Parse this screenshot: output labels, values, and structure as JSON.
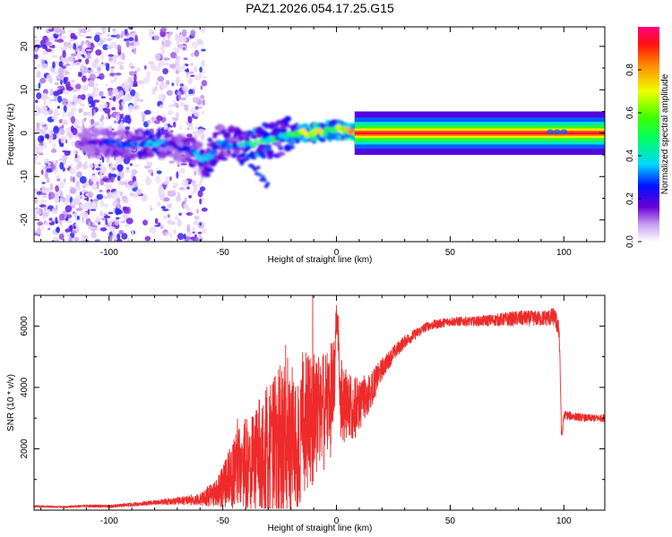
{
  "title": "PAZ1.2026.054.17.25.G15",
  "colors": {
    "snr_line": "#ee2a2a",
    "axis": "#000000"
  },
  "chart_data": [
    {
      "type": "heatmap",
      "name": "spectrogram",
      "xlabel": "Height of straight line (km)",
      "ylabel": "Frequency (Hz)",
      "xlim": [
        -133,
        118
      ],
      "ylim": [
        -25,
        24.5
      ],
      "xticks": [
        -100,
        -50,
        0,
        50,
        100
      ],
      "yticks": [
        -20,
        -10,
        0,
        10,
        20
      ],
      "colorbar": {
        "label": "Normalized spectral amplitude",
        "range": [
          0,
          1
        ],
        "ticks": [
          0.0,
          0.2,
          0.4,
          0.6,
          0.8
        ],
        "tick_labels": [
          "0.0",
          "0.2",
          "0.4",
          "0.6",
          "0.8"
        ]
      },
      "main_track": {
        "description_points": [
          {
            "x": -110,
            "freq": -2,
            "amp": 0.15
          },
          {
            "x": -100,
            "freq": -2,
            "amp": 0.25
          },
          {
            "x": -90,
            "freq": -3,
            "amp": 0.3
          },
          {
            "x": -80,
            "freq": -2,
            "amp": 0.35
          },
          {
            "x": -70,
            "freq": -3,
            "amp": 0.2
          },
          {
            "x": -57,
            "freq": -6,
            "amp": 0.35
          },
          {
            "x": -52,
            "freq": -2,
            "amp": 0.3
          },
          {
            "x": -45,
            "freq": -3,
            "amp": 0.3
          },
          {
            "x": -35,
            "freq": -2.5,
            "amp": 0.55
          },
          {
            "x": -25,
            "freq": -1,
            "amp": 0.4
          },
          {
            "x": -15,
            "freq": 0,
            "amp": 0.6
          },
          {
            "x": -8,
            "freq": 0,
            "amp": 0.7
          },
          {
            "x": 0,
            "freq": 1,
            "amp": 0.55
          },
          {
            "x": 10,
            "freq": 0,
            "amp": 0.8
          },
          {
            "x": 20,
            "freq": 0,
            "amp": 0.95
          },
          {
            "x": 118,
            "freq": 0,
            "amp": 0.95
          }
        ]
      }
    },
    {
      "type": "line",
      "name": "snr",
      "xlabel": "Height of straight line (km)",
      "ylabel": "SNR (10 * v/v)",
      "xlim": [
        -133,
        118
      ],
      "ylim": [
        0,
        7000
      ],
      "xticks": [
        -100,
        -50,
        0,
        50,
        100
      ],
      "yticks": [
        2000,
        4000,
        6000
      ],
      "series": [
        {
          "name": "SNR",
          "x": [
            -133,
            -120,
            -110,
            -100,
            -90,
            -80,
            -70,
            -60,
            -52,
            -48,
            -45,
            -40,
            -35,
            -30,
            -25,
            -20,
            -15,
            -10,
            -5,
            -1,
            0,
            2,
            5,
            10,
            15,
            20,
            25,
            30,
            40,
            50,
            60,
            70,
            80,
            90,
            96,
            98,
            99,
            100,
            105,
            110,
            118
          ],
          "y": [
            130,
            100,
            140,
            120,
            180,
            250,
            300,
            350,
            600,
            1000,
            1200,
            1500,
            1800,
            1900,
            2200,
            2400,
            2700,
            3100,
            3500,
            4000,
            6500,
            3500,
            3300,
            3400,
            3900,
            4600,
            5100,
            5500,
            6000,
            6150,
            6150,
            6200,
            6250,
            6250,
            6300,
            5800,
            2300,
            3100,
            3050,
            3000,
            3000
          ],
          "amp": [
            30,
            30,
            40,
            50,
            60,
            80,
            120,
            200,
            500,
            900,
            1200,
            1500,
            1800,
            2200,
            2500,
            2700,
            2500,
            2200,
            1800,
            1600,
            400,
            1500,
            1200,
            900,
            600,
            350,
            250,
            200,
            150,
            150,
            150,
            200,
            250,
            250,
            300,
            300,
            200,
            150,
            130,
            120,
            120
          ]
        }
      ]
    }
  ]
}
